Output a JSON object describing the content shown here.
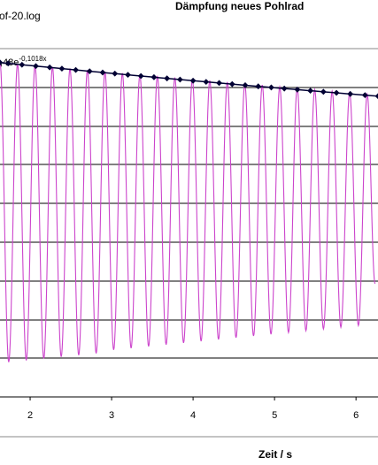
{
  "file_label": "of-20.log",
  "chart_data": {
    "type": "line",
    "title": "Dämpfung neues Pohlrad",
    "equation": {
      "prefix": ",48e",
      "exponent": "-0,1018x"
    },
    "xlabel": "Zeit / s",
    "ylabel": "",
    "xlim": [
      1.63,
      6.27
    ],
    "x_ticks": [
      2,
      3,
      4,
      5,
      6
    ],
    "x_tick_labels": [
      "2",
      "3",
      "4",
      "5",
      "6"
    ],
    "ylim": [
      -1.0,
      1.0
    ],
    "grid_y": true,
    "grid_x": false,
    "series": [
      {
        "type": "oscillation",
        "color": "#cc44cc",
        "period": 0.2146,
        "first_peak_x": 1.63,
        "peak_x": [
          1.63,
          1.845,
          2.06,
          2.274,
          2.489,
          2.703,
          2.918,
          3.132,
          3.347,
          3.562,
          3.776,
          3.991,
          4.205,
          4.42,
          4.635,
          4.849,
          5.064,
          5.278,
          5.493,
          5.707,
          5.922,
          6.137
        ],
        "peak_y": [
          0.92,
          0.911,
          0.903,
          0.894,
          0.886,
          0.877,
          0.868,
          0.859,
          0.85,
          0.843,
          0.834,
          0.825,
          0.817,
          0.808,
          0.798,
          0.791,
          0.781,
          0.774,
          0.765,
          0.756,
          0.748,
          0.739
        ],
        "trough_y": [
          -0.8,
          -0.79,
          -0.78,
          -0.77,
          -0.76,
          -0.75,
          -0.73,
          -0.72,
          -0.71,
          -0.7,
          -0.69,
          -0.68,
          -0.67,
          -0.66,
          -0.65,
          -0.64,
          -0.63,
          -0.62,
          -0.61,
          -0.6,
          -0.59
        ]
      },
      {
        "type": "envelope_fit",
        "color": "#000033",
        "marker": "diamond",
        "x_start": 1.63,
        "x_end": 6.27,
        "y_start": 0.92,
        "y_end": 0.727,
        "marker_x": [
          1.63,
          1.73,
          1.9,
          2.07,
          2.24,
          2.39,
          2.56,
          2.73,
          2.89,
          3.04,
          3.2,
          3.36,
          3.52,
          3.68,
          3.84,
          4.0,
          4.16,
          4.32,
          4.48,
          4.64,
          4.8,
          4.96,
          5.12,
          5.28,
          5.44,
          5.6,
          5.76,
          5.93,
          6.11,
          6.27
        ]
      }
    ]
  }
}
